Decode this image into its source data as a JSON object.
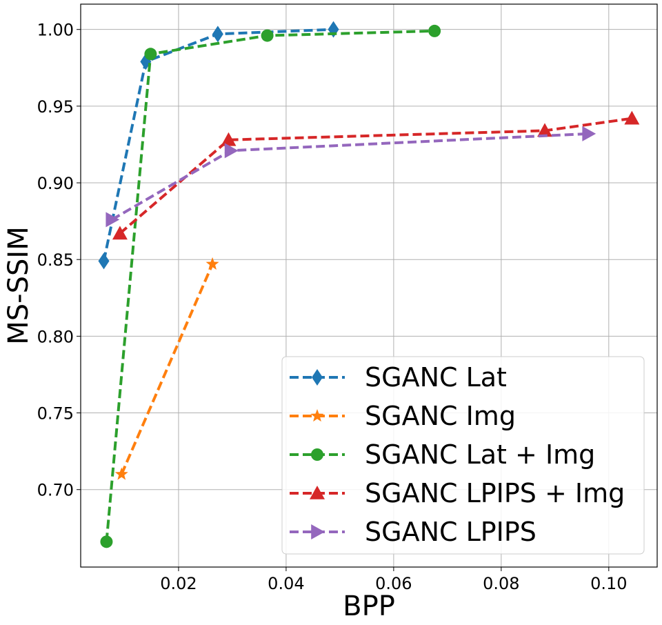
{
  "chart_data": {
    "type": "line",
    "title": "",
    "xlabel": "BPP",
    "ylabel": "MS-SSIM",
    "xlim": [
      0.0018,
      0.109
    ],
    "ylim": [
      0.6495,
      1.0165
    ],
    "xticks": [
      0.02,
      0.04,
      0.06,
      0.08,
      0.1
    ],
    "xtick_labels": [
      "0.02",
      "0.04",
      "0.06",
      "0.08",
      "0.10"
    ],
    "yticks": [
      0.7,
      0.75,
      0.8,
      0.85,
      0.9,
      0.95,
      1.0
    ],
    "ytick_labels": [
      "0.70",
      "0.75",
      "0.80",
      "0.85",
      "0.90",
      "0.95",
      "1.00"
    ],
    "grid": true,
    "legend_position": "bottom-right",
    "series": [
      {
        "name": "SGANC Lat",
        "color": "#1f77b4",
        "marker": "diamond",
        "x": [
          0.0061,
          0.0139,
          0.0273,
          0.0488
        ],
        "y": [
          0.849,
          0.979,
          0.997,
          1.0
        ]
      },
      {
        "name": "SGANC Img",
        "color": "#ff7f0e",
        "marker": "star",
        "x": [
          0.0094,
          0.0263
        ],
        "y": [
          0.71,
          0.847
        ]
      },
      {
        "name": "SGANC Lat + Img",
        "color": "#2ca02c",
        "marker": "circle",
        "x": [
          0.0066,
          0.0148,
          0.0365,
          0.0676
        ],
        "y": [
          0.666,
          0.984,
          0.996,
          0.999
        ]
      },
      {
        "name": "SGANC LPIPS + Img",
        "color": "#d62728",
        "marker": "triangle-up",
        "x": [
          0.0091,
          0.0293,
          0.0881,
          0.1043
        ],
        "y": [
          0.867,
          0.928,
          0.934,
          0.942
        ]
      },
      {
        "name": "SGANC LPIPS",
        "color": "#9467bd",
        "marker": "triangle-right",
        "x": [
          0.0076,
          0.0297,
          0.0962
        ],
        "y": [
          0.876,
          0.921,
          0.932
        ]
      }
    ]
  }
}
